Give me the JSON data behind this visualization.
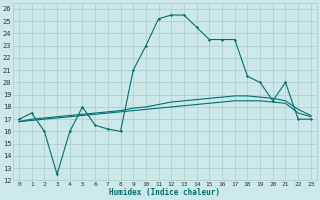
{
  "xlabel": "Humidex (Indice chaleur)",
  "bg_color": "#cce8e8",
  "plot_bg_color": "#cce8e8",
  "line_color": "#007070",
  "grid_color": "#aacccc",
  "xlim": [
    -0.5,
    23.5
  ],
  "ylim": [
    12,
    26.5
  ],
  "yticks": [
    12,
    13,
    14,
    15,
    16,
    17,
    18,
    19,
    20,
    21,
    22,
    23,
    24,
    25,
    26
  ],
  "xticks": [
    0,
    1,
    2,
    3,
    4,
    5,
    6,
    7,
    8,
    9,
    10,
    11,
    12,
    13,
    14,
    15,
    16,
    17,
    18,
    19,
    20,
    21,
    22,
    23
  ],
  "main_line": [
    17.0,
    17.5,
    16.0,
    12.5,
    16.0,
    18.0,
    16.5,
    16.2,
    16.0,
    21.0,
    23.0,
    25.2,
    25.5,
    25.5,
    24.5,
    23.5,
    23.5,
    23.5,
    20.5,
    20.0,
    18.5,
    20.0,
    17.0,
    17.0
  ],
  "trend_line1": [
    16.8,
    16.9,
    17.0,
    17.1,
    17.2,
    17.3,
    17.4,
    17.5,
    17.6,
    17.7,
    17.8,
    17.9,
    18.0,
    18.1,
    18.2,
    18.3,
    18.4,
    18.5,
    18.5,
    18.5,
    18.4,
    18.3,
    17.5,
    17.2
  ],
  "trend_line2": [
    16.8,
    17.0,
    17.1,
    17.2,
    17.3,
    17.4,
    17.5,
    17.6,
    17.7,
    17.9,
    18.0,
    18.2,
    18.4,
    18.5,
    18.6,
    18.7,
    18.8,
    18.9,
    18.9,
    18.8,
    18.7,
    18.5,
    17.8,
    17.3
  ],
  "xlabel_color": "#007070",
  "xlabel_fontsize": 5.5,
  "tick_fontsize": 5.0
}
